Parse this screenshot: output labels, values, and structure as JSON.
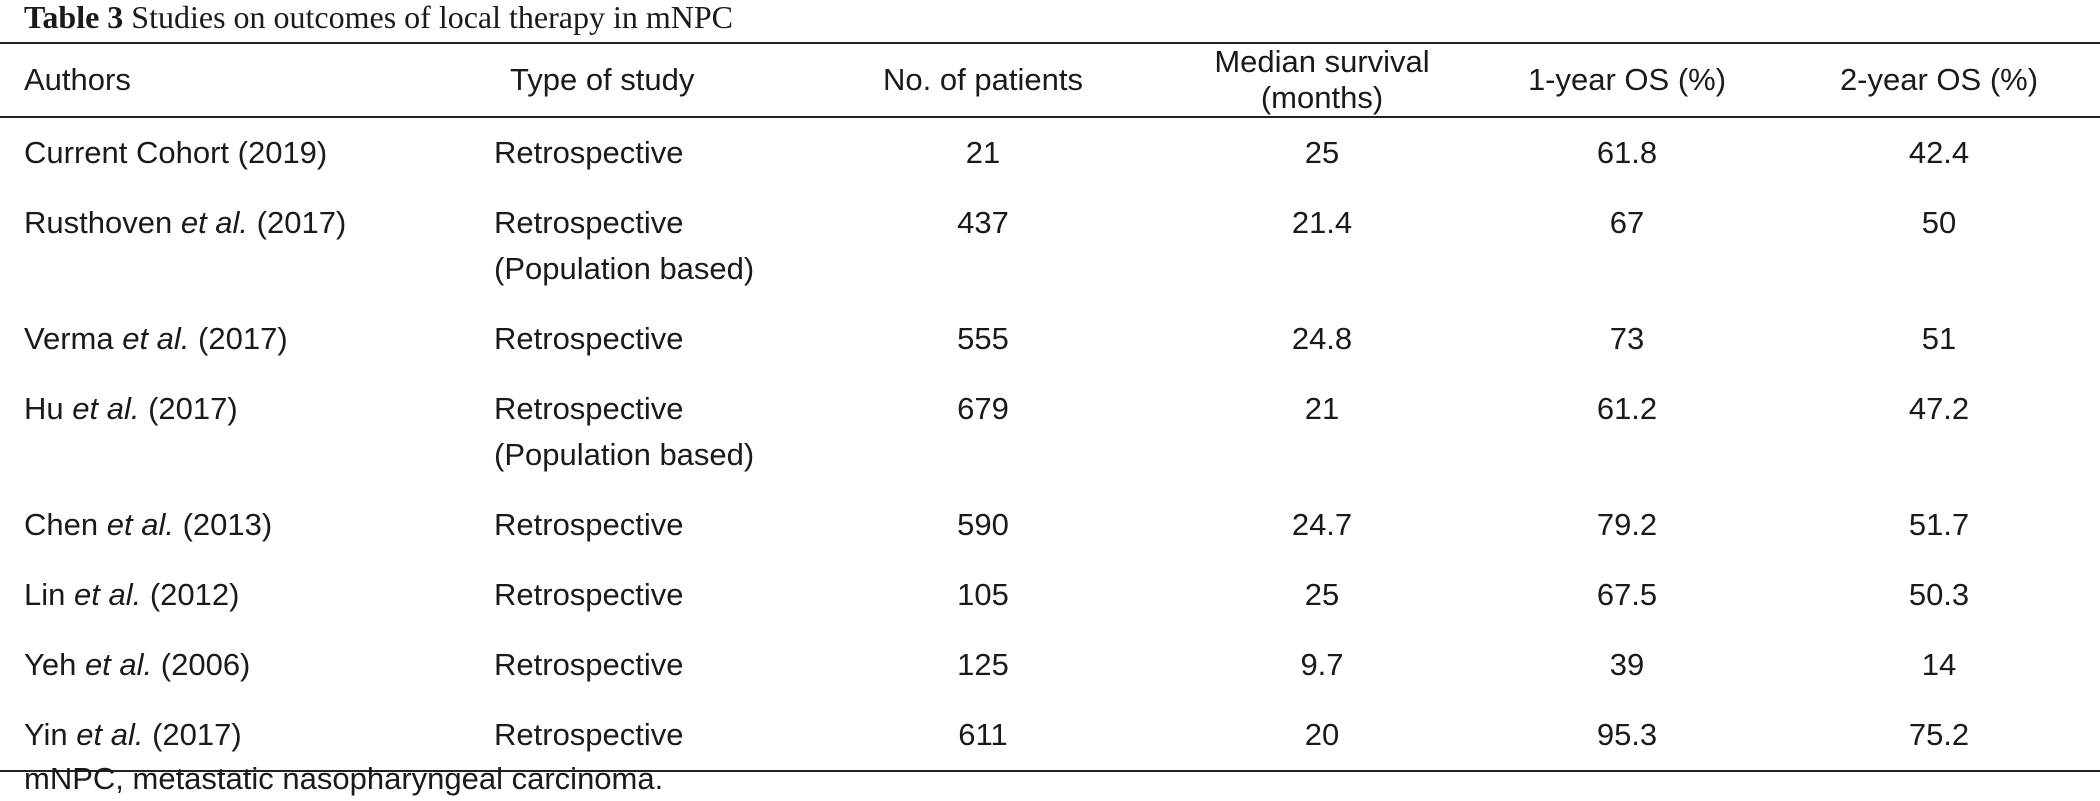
{
  "caption": {
    "label": "Table 3",
    "text": "Studies on outcomes of local therapy in mNPC"
  },
  "table": {
    "headers": [
      "Authors",
      "Type of study",
      "No. of patients",
      "Median survival (months)",
      "1-year OS (%)",
      "2-year OS (%)"
    ],
    "rows": [
      {
        "author_pre": "Current Cohort (2019)",
        "author_em": "",
        "author_post": "",
        "type_line1": "Retrospective",
        "type_line2": "",
        "patients": "21",
        "median_survival": "25",
        "os_1yr": "61.8",
        "os_2yr": "42.4"
      },
      {
        "author_pre": "Rusthoven ",
        "author_em": "et al.",
        "author_post": " (2017)",
        "type_line1": "Retrospective",
        "type_line2": "(Population based)",
        "patients": "437",
        "median_survival": "21.4",
        "os_1yr": "67",
        "os_2yr": "50"
      },
      {
        "author_pre": "Verma ",
        "author_em": "et al.",
        "author_post": " (2017)",
        "type_line1": "Retrospective",
        "type_line2": "",
        "patients": "555",
        "median_survival": "24.8",
        "os_1yr": "73",
        "os_2yr": "51"
      },
      {
        "author_pre": "Hu ",
        "author_em": "et al.",
        "author_post": " (2017)",
        "type_line1": "Retrospective",
        "type_line2": "(Population based)",
        "patients": "679",
        "median_survival": "21",
        "os_1yr": "61.2",
        "os_2yr": "47.2"
      },
      {
        "author_pre": "Chen ",
        "author_em": "et al.",
        "author_post": " (2013)",
        "type_line1": "Retrospective",
        "type_line2": "",
        "patients": "590",
        "median_survival": "24.7",
        "os_1yr": "79.2",
        "os_2yr": "51.7"
      },
      {
        "author_pre": "Lin ",
        "author_em": "et al.",
        "author_post": " (2012)",
        "type_line1": "Retrospective",
        "type_line2": "",
        "patients": "105",
        "median_survival": "25",
        "os_1yr": "67.5",
        "os_2yr": "50.3"
      },
      {
        "author_pre": "Yeh ",
        "author_em": "et al.",
        "author_post": " (2006)",
        "type_line1": "Retrospective",
        "type_line2": "",
        "patients": "125",
        "median_survival": "9.7",
        "os_1yr": "39",
        "os_2yr": "14"
      },
      {
        "author_pre": "Yin ",
        "author_em": "et al.",
        "author_post": " (2017)",
        "type_line1": "Retrospective",
        "type_line2": "",
        "patients": "611",
        "median_survival": "20",
        "os_1yr": "95.3",
        "os_2yr": "75.2"
      }
    ]
  },
  "footnote": "mNPC, metastatic nasopharyngeal carcinoma."
}
